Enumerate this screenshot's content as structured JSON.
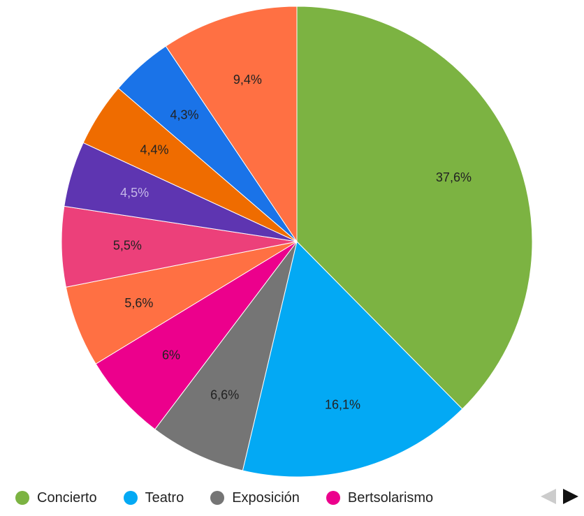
{
  "chart_data": {
    "type": "pie",
    "slices": [
      {
        "label": "Concierto",
        "value": 37.6,
        "text": "37,6%",
        "color": "#7cb342",
        "label_color": "#222222"
      },
      {
        "label": "Teatro",
        "value": 16.1,
        "text": "16,1%",
        "color": "#03a9f4",
        "label_color": "#222222"
      },
      {
        "label": "Exposición",
        "value": 6.6,
        "text": "6,6%",
        "color": "#757575",
        "label_color": "#222222"
      },
      {
        "label": "Bertsolarismo",
        "value": 6.0,
        "text": "6%",
        "color": "#ec008c",
        "label_color": "#222222"
      },
      {
        "label": "",
        "value": 5.6,
        "text": "5,6%",
        "color": "#ff7043",
        "label_color": "#222222"
      },
      {
        "label": "",
        "value": 5.5,
        "text": "5,5%",
        "color": "#ec407a",
        "label_color": "#222222"
      },
      {
        "label": "",
        "value": 4.5,
        "text": "4,5%",
        "color": "#5e35b1",
        "label_color": "#c5b8e8"
      },
      {
        "label": "",
        "value": 4.4,
        "text": "4,4%",
        "color": "#ef6c00",
        "label_color": "#222222"
      },
      {
        "label": "",
        "value": 4.3,
        "text": "4,3%",
        "color": "#1a73e8",
        "label_color": "#222222"
      },
      {
        "label": "",
        "value": 9.4,
        "text": "9,4%",
        "color": "#ff7043",
        "label_color": "#222222"
      }
    ],
    "legend": {
      "placement": "bottom-left",
      "items": [
        {
          "label": "Concierto",
          "color": "#7cb342"
        },
        {
          "label": "Teatro",
          "color": "#03a9f4"
        },
        {
          "label": "Exposición",
          "color": "#757575"
        },
        {
          "label": "Bertsolarismo",
          "color": "#ec008c"
        }
      ]
    }
  },
  "legend_pager": {
    "prev_icon": "arrow-left-icon",
    "next_icon": "arrow-right-icon",
    "prev_enabled": false,
    "next_enabled": true
  }
}
